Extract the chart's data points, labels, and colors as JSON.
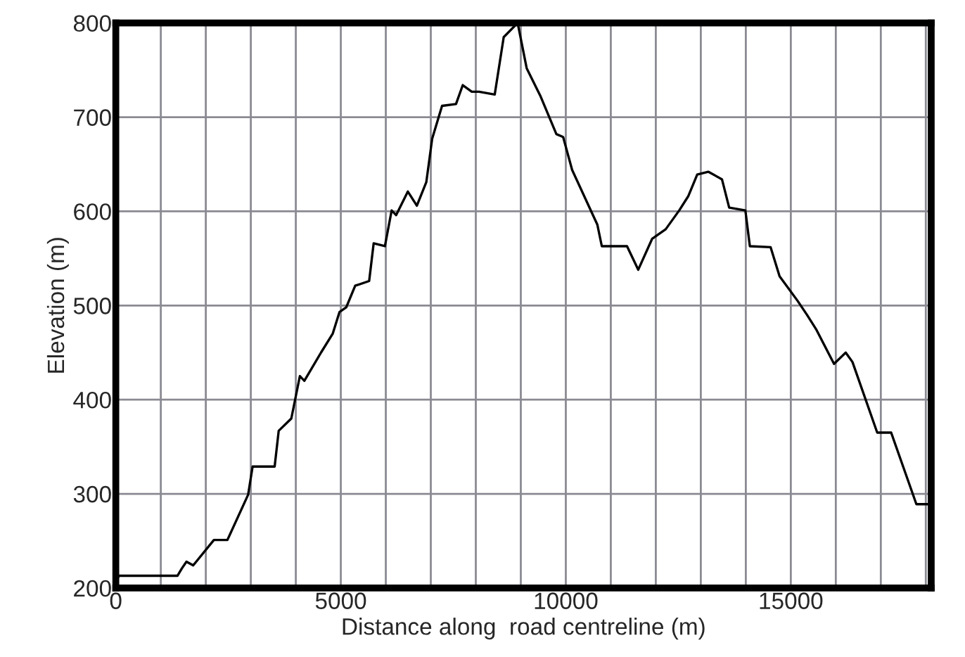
{
  "chart_data": {
    "type": "line",
    "xlabel": "Distance along  road centreline (m)",
    "ylabel": "Elevation (m)",
    "xlim": [
      0,
      18120
    ],
    "ylim": [
      200,
      800
    ],
    "xticks": [
      0,
      {
        "value": 1000,
        "label": null
      },
      {
        "value": 2000,
        "label": null
      },
      {
        "value": 3000,
        "label": null
      },
      {
        "value": 4000,
        "label": null
      },
      5000,
      {
        "value": 6000,
        "label": null
      },
      {
        "value": 7000,
        "label": null
      },
      {
        "value": 8000,
        "label": null
      },
      {
        "value": 9000,
        "label": null
      },
      10000,
      {
        "value": 11000,
        "label": null
      },
      {
        "value": 12000,
        "label": null
      },
      {
        "value": 13000,
        "label": null
      },
      {
        "value": 14000,
        "label": null
      },
      15000,
      {
        "value": 16000,
        "label": null
      },
      {
        "value": 17000,
        "label": null
      },
      {
        "value": 18000,
        "label": null
      }
    ],
    "yticks": [
      200,
      300,
      400,
      500,
      600,
      700,
      800
    ],
    "grid": true,
    "marker": "none",
    "line_style": "solid",
    "series": [
      {
        "color": "#000000",
        "x": [
          0,
          70,
          1370,
          1470,
          1570,
          1720,
          2180,
          2480,
          2940,
          3040,
          3530,
          3620,
          3900,
          4090,
          4190,
          4560,
          4820,
          4970,
          5120,
          5320,
          5630,
          5730,
          5980,
          6130,
          6230,
          6490,
          6690,
          6900,
          7030,
          7250,
          7560,
          7710,
          7910,
          8070,
          8420,
          8620,
          8930,
          9130,
          9440,
          9790,
          9940,
          10140,
          10700,
          10800,
          11360,
          11610,
          11920,
          12220,
          12520,
          12720,
          12920,
          13170,
          13470,
          13630,
          13990,
          14090,
          14550,
          14750,
          15150,
          15360,
          15560,
          15960,
          16220,
          16370,
          16920,
          17230,
          17680,
          17790,
          18090
        ],
        "values": [
          206,
          213,
          213,
          221,
          228,
          224,
          251,
          251,
          299,
          329,
          329,
          367,
          380,
          425,
          420,
          450,
          470,
          493,
          498,
          521,
          526,
          566,
          563,
          601,
          596,
          621,
          606,
          631,
          677,
          712,
          714,
          734,
          727,
          727,
          724,
          785,
          800,
          752,
          722,
          682,
          679,
          644,
          586,
          563,
          563,
          538,
          571,
          581,
          601,
          616,
          639,
          642,
          634,
          604,
          601,
          563,
          562,
          531,
          505,
          490,
          475,
          438,
          450,
          440,
          365,
          365,
          304,
          289,
          289
        ]
      }
    ]
  }
}
